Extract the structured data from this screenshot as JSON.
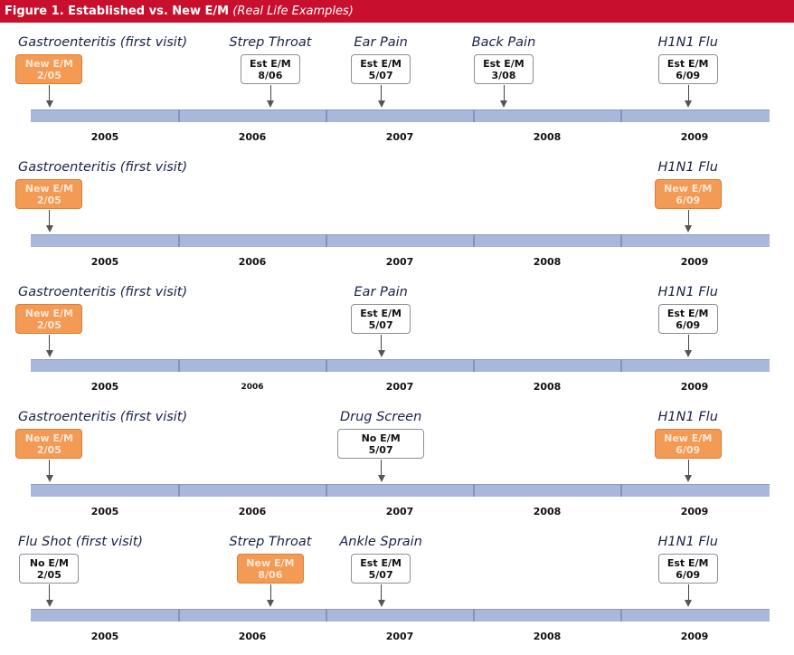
{
  "header": {
    "title": "Figure 1. Established vs. New E/M",
    "subtitle": "(Real Life Examples)"
  },
  "colors": {
    "header_red": "#c8102e",
    "new_em_orange": "#f39a55",
    "timeline_bar": "#a9b8da",
    "label_navy": "#1a2147"
  },
  "timelines": [
    {
      "years": [
        "2005",
        "2006",
        "2007",
        "2008",
        "2009"
      ],
      "events": [
        {
          "label": "Gastroenteritis (first visit)",
          "code": "New E/M",
          "date": "2/05",
          "style": "orange"
        },
        {
          "label": "Strep Throat",
          "code": "Est E/M",
          "date": "8/06",
          "style": "white"
        },
        {
          "label": "Ear Pain",
          "code": "Est E/M",
          "date": "5/07",
          "style": "white"
        },
        {
          "label": "Back Pain",
          "code": "Est E/M",
          "date": "3/08",
          "style": "white"
        },
        {
          "label": "H1N1 Flu",
          "code": "Est E/M",
          "date": "6/09",
          "style": "white"
        }
      ]
    },
    {
      "years": [
        "2005",
        "2006",
        "2007",
        "2008",
        "2009"
      ],
      "events": [
        {
          "label": "Gastroenteritis (first visit)",
          "code": "New E/M",
          "date": "2/05",
          "style": "orange"
        },
        {
          "label": "H1N1 Flu",
          "code": "New E/M",
          "date": "6/09",
          "style": "orange"
        }
      ]
    },
    {
      "years": [
        "2005",
        "2006",
        "2007",
        "2008",
        "2009"
      ],
      "events": [
        {
          "label": "Gastroenteritis (first visit)",
          "code": "New E/M",
          "date": "2/05",
          "style": "orange"
        },
        {
          "label": "Ear Pain",
          "code": "Est E/M",
          "date": "5/07",
          "style": "white"
        },
        {
          "label": "H1N1 Flu",
          "code": "Est E/M",
          "date": "6/09",
          "style": "white"
        }
      ]
    },
    {
      "years": [
        "2005",
        "2006",
        "2007",
        "2008",
        "2009"
      ],
      "events": [
        {
          "label": "Gastroenteritis (first visit)",
          "code": "New E/M",
          "date": "2/05",
          "style": "orange"
        },
        {
          "label": "Drug Screen",
          "code": "No E/M",
          "date": "5/07",
          "style": "white"
        },
        {
          "label": "H1N1 Flu",
          "code": "New E/M",
          "date": "6/09",
          "style": "orange"
        }
      ]
    },
    {
      "years": [
        "2005",
        "2006",
        "2007",
        "2008",
        "2009"
      ],
      "events": [
        {
          "label": "Flu Shot (first visit)",
          "code": "No E/M",
          "date": "2/05",
          "style": "white"
        },
        {
          "label": "Strep Throat",
          "code": "New E/M",
          "date": "8/06",
          "style": "orange"
        },
        {
          "label": "Ankle Sprain",
          "code": "Est E/M",
          "date": "5/07",
          "style": "white"
        },
        {
          "label": "H1N1 Flu",
          "code": "Est E/M",
          "date": "6/09",
          "style": "white"
        }
      ]
    }
  ]
}
